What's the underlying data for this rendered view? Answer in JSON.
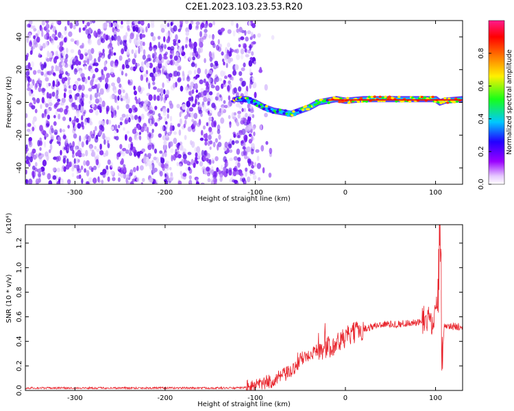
{
  "title": "C2E1.2023.103.23.53.R20",
  "colors": {
    "snr_line": "#e8232b",
    "noise_purple": "#7a1ef2",
    "colorbar_stops": [
      "#ffffff",
      "#a400ff",
      "#2b00ff",
      "#00c8ff",
      "#18ff18",
      "#fff000",
      "#ff7a00",
      "#ff0000",
      "#ff1a8c"
    ]
  },
  "chart_data": [
    {
      "type": "heatmap",
      "title": "C2E1.2023.103.23.53.R20",
      "xlabel": "Height of straight line (km)",
      "ylabel": "Frequency (Hz)",
      "xlim": [
        -355,
        130
      ],
      "ylim": [
        -50,
        50
      ],
      "xticks": [
        -300,
        -200,
        -100,
        0,
        100
      ],
      "yticks": [
        -40,
        -20,
        0,
        20,
        40
      ],
      "grid": false,
      "noise_region_x": [
        -355,
        -100
      ],
      "signal_ridge": {
        "x": [
          -120,
          -110,
          -100,
          -90,
          -80,
          -70,
          -60,
          -50,
          -40,
          -30,
          -20,
          -10,
          0,
          20,
          40,
          60,
          80,
          100,
          105,
          110,
          130
        ],
        "y": [
          2,
          2,
          0,
          -3,
          -5,
          -6,
          -7,
          -5,
          -3,
          0,
          1,
          2,
          1,
          2,
          2,
          2,
          2,
          2,
          0,
          1,
          2
        ]
      },
      "colorbar": {
        "label": "Normalized spectral amplitude",
        "range": [
          0.0,
          1.0
        ],
        "ticks": [
          0.0,
          0.2,
          0.4,
          0.6,
          0.8
        ]
      }
    },
    {
      "type": "line",
      "xlabel": "Height of straight line (km)",
      "ylabel": "SNR (10 * v/v)",
      "multiplier": "(x10⁴)",
      "xlim": [
        -355,
        130
      ],
      "ylim": [
        0.0,
        1.35
      ],
      "xticks": [
        -300,
        -200,
        -100,
        0,
        100
      ],
      "yticks": [
        0.0,
        0.2,
        0.4,
        0.6,
        0.8,
        1.0,
        1.2
      ],
      "grid": false,
      "series": [
        {
          "x": [
            -355,
            -300,
            -250,
            -200,
            -150,
            -120,
            -100,
            -90,
            -80,
            -70,
            -60,
            -50,
            -40,
            -30,
            -20,
            -10,
            0,
            10,
            20,
            30,
            40,
            50,
            60,
            70,
            80,
            90,
            95,
            100,
            103,
            105,
            107,
            110,
            115,
            120,
            130
          ],
          "y": [
            0.02,
            0.02,
            0.02,
            0.02,
            0.02,
            0.02,
            0.03,
            0.06,
            0.08,
            0.12,
            0.15,
            0.25,
            0.3,
            0.33,
            0.35,
            0.38,
            0.43,
            0.47,
            0.5,
            0.52,
            0.54,
            0.54,
            0.54,
            0.55,
            0.55,
            0.56,
            0.57,
            0.58,
            0.8,
            1.35,
            0.3,
            0.53,
            0.52,
            0.52,
            0.52
          ]
        }
      ]
    }
  ]
}
